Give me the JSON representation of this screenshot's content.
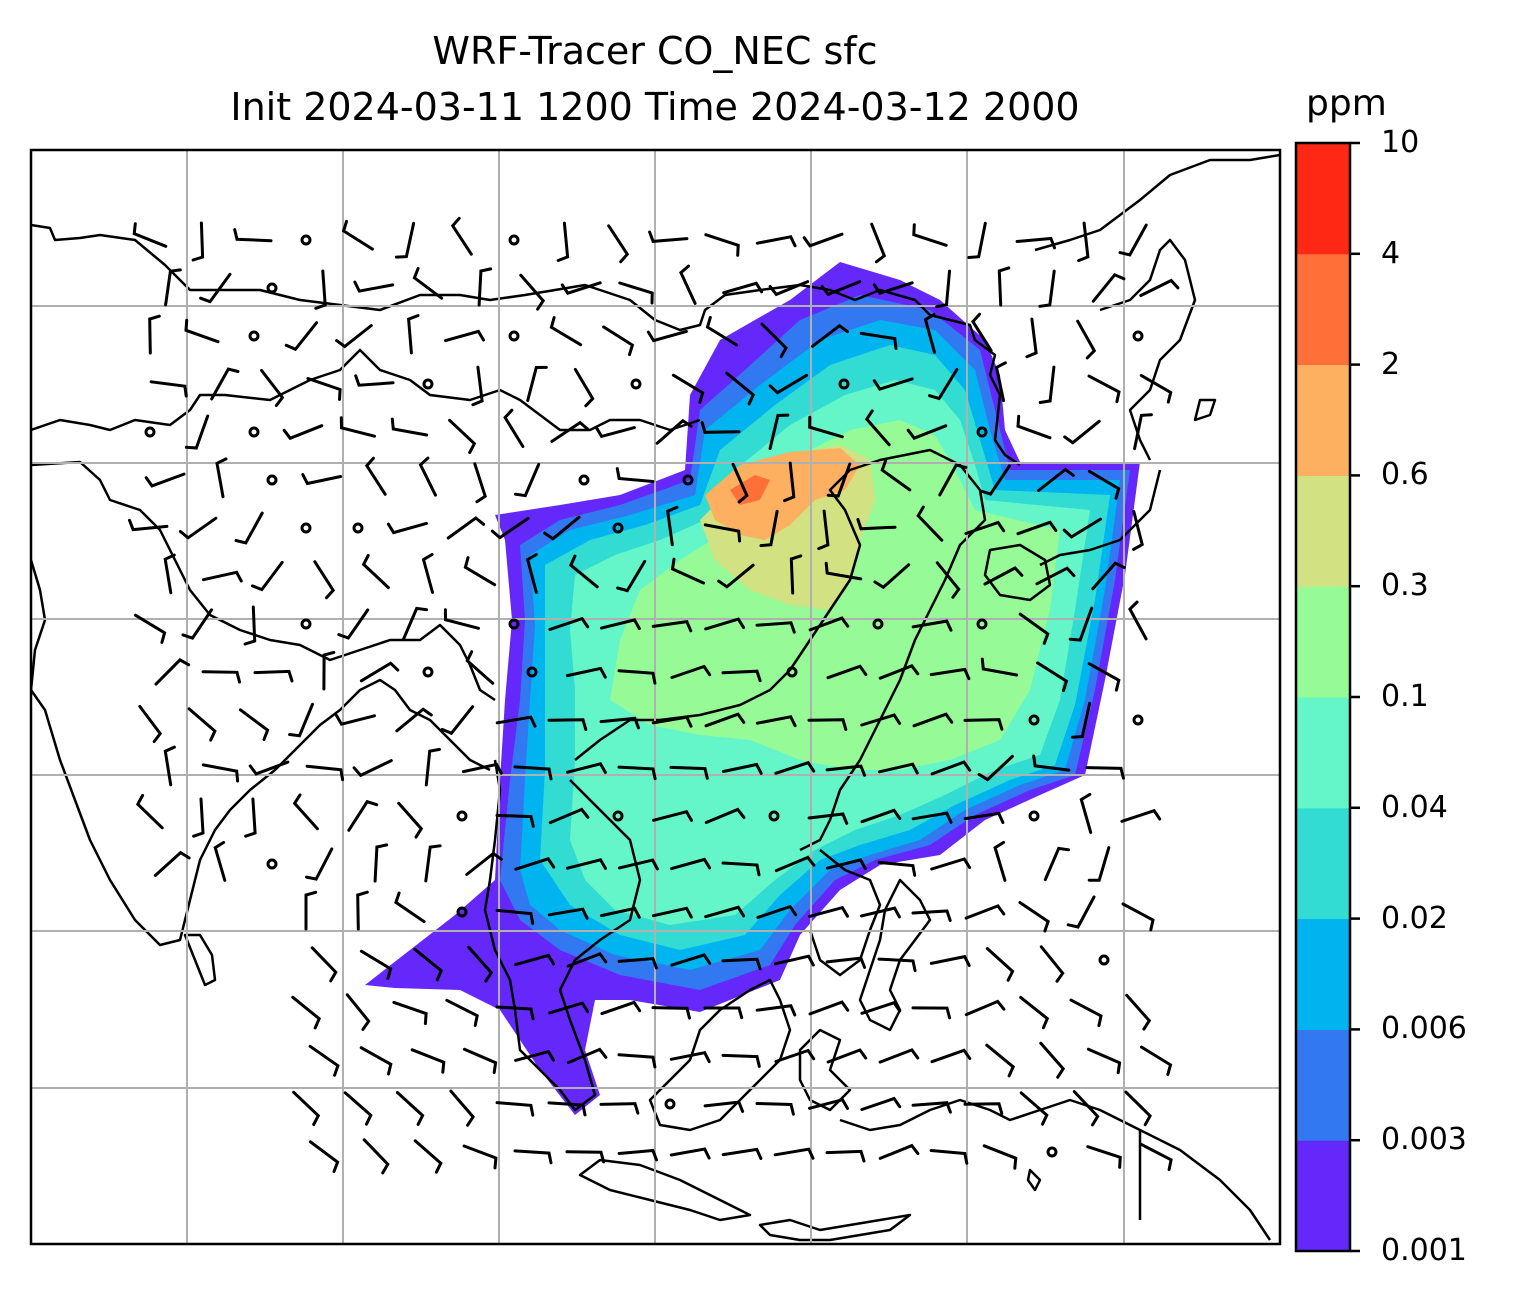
{
  "title": {
    "line1": "WRF-Tracer CO_NEC sfc",
    "line2": "Init 2024-03-11 1200 Time 2024-03-12 2000"
  },
  "colorbar": {
    "unit": "ppm",
    "ticks": [
      "0.001",
      "0.003",
      "0.006",
      "0.02",
      "0.04",
      "0.1",
      "0.3",
      "0.6",
      "2",
      "4",
      "10"
    ],
    "colors": [
      "#6428fa",
      "#3278f0",
      "#00b4f0",
      "#32dcd2",
      "#64f5c8",
      "#96fa96",
      "#d2e182",
      "#fdb060",
      "#ff7038",
      "#ff2814"
    ]
  },
  "map": {
    "gridlines": true,
    "field": "CO_NEC surface tracer concentration",
    "overlay": "wind barbs"
  }
}
